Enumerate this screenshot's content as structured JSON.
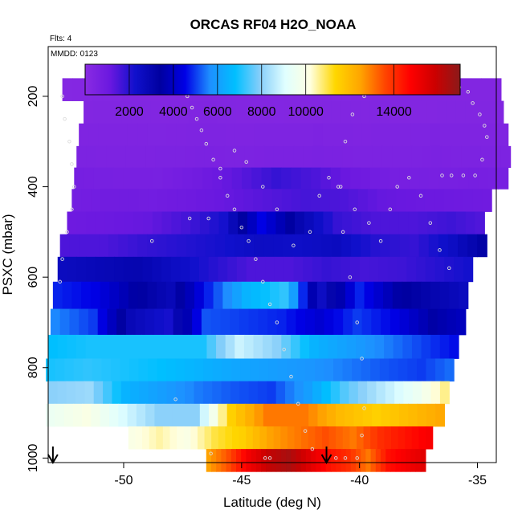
{
  "chart_data": {
    "type": "heatmap",
    "title": "ORCAS RF04 H2O_NOAA",
    "note_left": "Flts: 4",
    "note_inner": "MMDD: 0123",
    "xlabel": "Latitude (deg N)",
    "ylabel": "PSXC (mbar)",
    "xlim": [
      -53.2,
      -34.2
    ],
    "ylim": [
      1010,
      90
    ],
    "x_ticks": [
      -50,
      -45,
      -40,
      -35
    ],
    "y_ticks": [
      200,
      400,
      600,
      800,
      1000
    ],
    "colorbar": {
      "range": [
        0,
        17000
      ],
      "ticks": [
        2000,
        4000,
        6000,
        8000,
        10000,
        14000
      ],
      "stops": [
        "#8a2be2",
        "#6a18e0",
        "#1010cc",
        "#0000a0",
        "#0000e6",
        "#1e90ff",
        "#00bfff",
        "#87cefa",
        "#e0ffff",
        "#ffffe0",
        "#ffd700",
        "#ffa500",
        "#ff4500",
        "#ff0000",
        "#cc0000",
        "#8b1a1a"
      ]
    },
    "rows": [
      {
        "p": 185,
        "x0": -52.6,
        "x1": -34.0,
        "values": [
          200,
          250,
          300,
          300,
          320,
          300,
          280,
          260,
          300,
          320,
          300,
          280
        ]
      },
      {
        "p": 235,
        "x0": -51.7,
        "x1": -33.9,
        "values": [
          300,
          320,
          300,
          350,
          300,
          280,
          300,
          320,
          300,
          300,
          320,
          330
        ]
      },
      {
        "p": 285,
        "x0": -51.9,
        "x1": -33.7,
        "values": [
          400,
          400,
          380,
          420,
          400,
          420,
          450,
          400,
          420,
          450,
          400,
          380
        ]
      },
      {
        "p": 335,
        "x0": -52.0,
        "x1": -33.6,
        "values": [
          500,
          450,
          480,
          520,
          500,
          520,
          550,
          500,
          480,
          520,
          480,
          460
        ]
      },
      {
        "p": 380,
        "x0": -52.1,
        "x1": -33.7,
        "values": [
          700,
          650,
          620,
          900,
          1300,
          1800,
          1500,
          1000,
          700,
          650,
          700,
          650
        ]
      },
      {
        "p": 430,
        "x0": -52.2,
        "x1": -34.4,
        "values": [
          800,
          900,
          850,
          1000,
          1200,
          1400,
          1600,
          1500,
          1200,
          1100,
          1000,
          900
        ]
      },
      {
        "p": 480,
        "x0": -52.4,
        "x1": -34.7,
        "values": [
          1000,
          1100,
          1200,
          1600,
          2200,
          4500,
          3000,
          1800,
          1500,
          1500,
          1700,
          1400
        ]
      },
      {
        "p": 530,
        "x0": -52.7,
        "x1": -34.6,
        "values": [
          1500,
          1500,
          1800,
          2000,
          2200,
          2500,
          2400,
          2600,
          2000,
          1800,
          2500,
          3500
        ]
      },
      {
        "p": 580,
        "x0": -52.8,
        "x1": -35.2,
        "values": [
          2600,
          2800,
          3000,
          2500,
          2000,
          1500,
          1500,
          1800,
          1600,
          1700,
          2000,
          2300
        ]
      },
      {
        "p": 640,
        "x0": -53.0,
        "x1": -35.4,
        "values": [
          4800,
          4500,
          3500,
          2800,
          4800,
          6500,
          7200,
          2500,
          4800,
          3500,
          3000,
          2500
        ]
      },
      {
        "p": 700,
        "x0": -53.1,
        "x1": -35.5,
        "values": [
          5600,
          5000,
          2800,
          2200,
          5200,
          5000,
          4800,
          4200,
          5000,
          4500,
          3500,
          4000
        ]
      },
      {
        "p": 755,
        "x0": -53.2,
        "x1": -35.8,
        "values": [
          6800,
          7000,
          7000,
          7000,
          7000,
          8800,
          8000,
          6500,
          6000,
          5500,
          5000,
          4500
        ]
      },
      {
        "p": 805,
        "x0": -53.3,
        "x1": -36.0,
        "values": [
          7000,
          7200,
          7000,
          6800,
          6500,
          6200,
          6000,
          5800,
          5500,
          5200,
          5000,
          5500
        ]
      },
      {
        "p": 855,
        "x0": -53.2,
        "x1": -36.2,
        "values": [
          8000,
          8200,
          6500,
          6000,
          5500,
          5200,
          5000,
          6000,
          7500,
          8500,
          9500,
          11000
        ]
      },
      {
        "p": 905,
        "x0": -53.3,
        "x1": -36.4,
        "values": [
          9500,
          10000,
          9000,
          8000,
          8000,
          11500,
          13000,
          13000,
          12000,
          11500,
          12000,
          12500
        ]
      },
      {
        "p": 955,
        "x0": -49.8,
        "x1": -36.9,
        "values": [
          10000,
          10500,
          10000,
          11000,
          11500,
          12500,
          13000,
          13500,
          13000,
          14000,
          14500,
          15000
        ]
      },
      {
        "p": 1005,
        "x0": -46.5,
        "x1": -37.2,
        "values": [
          12500,
          13500,
          15000,
          16000,
          16500,
          15500,
          14500,
          14000,
          13000,
          14500,
          15000,
          15500
        ]
      }
    ],
    "arrows_x": [
      -53.0,
      -41.4
    ]
  }
}
